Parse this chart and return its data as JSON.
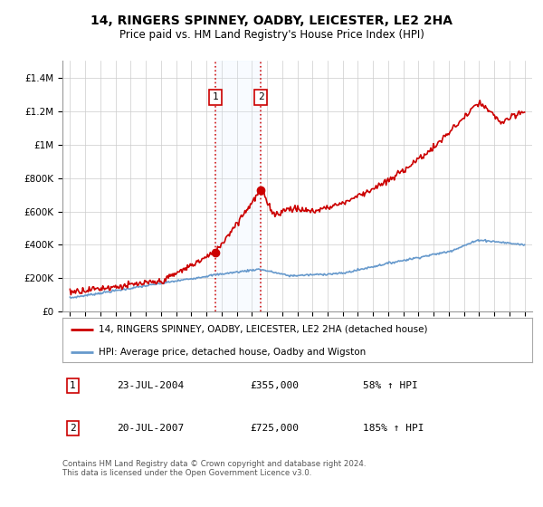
{
  "title": "14, RINGERS SPINNEY, OADBY, LEICESTER, LE2 2HA",
  "subtitle": "Price paid vs. HM Land Registry's House Price Index (HPI)",
  "legend_line1": "14, RINGERS SPINNEY, OADBY, LEICESTER, LE2 2HA (detached house)",
  "legend_line2": "HPI: Average price, detached house, Oadby and Wigston",
  "sale1_date": "23-JUL-2004",
  "sale1_price": "£355,000",
  "sale1_pct": "58% ↑ HPI",
  "sale2_date": "20-JUL-2007",
  "sale2_price": "£725,000",
  "sale2_pct": "185% ↑ HPI",
  "footer": "Contains HM Land Registry data © Crown copyright and database right 2024.\nThis data is licensed under the Open Government Licence v3.0.",
  "red_color": "#cc0000",
  "blue_color": "#6699cc",
  "shade_color": "#ddeeff",
  "ylim_max": 1500000,
  "yticks": [
    0,
    200000,
    400000,
    600000,
    800000,
    1000000,
    1200000,
    1400000
  ],
  "ytick_labels": [
    "£0",
    "£200K",
    "£400K",
    "£600K",
    "£800K",
    "£1M",
    "£1.2M",
    "£1.4M"
  ],
  "sale1_year": 2004.583,
  "sale2_year": 2007.583,
  "sale1_val": 355000,
  "sale2_val": 725000
}
